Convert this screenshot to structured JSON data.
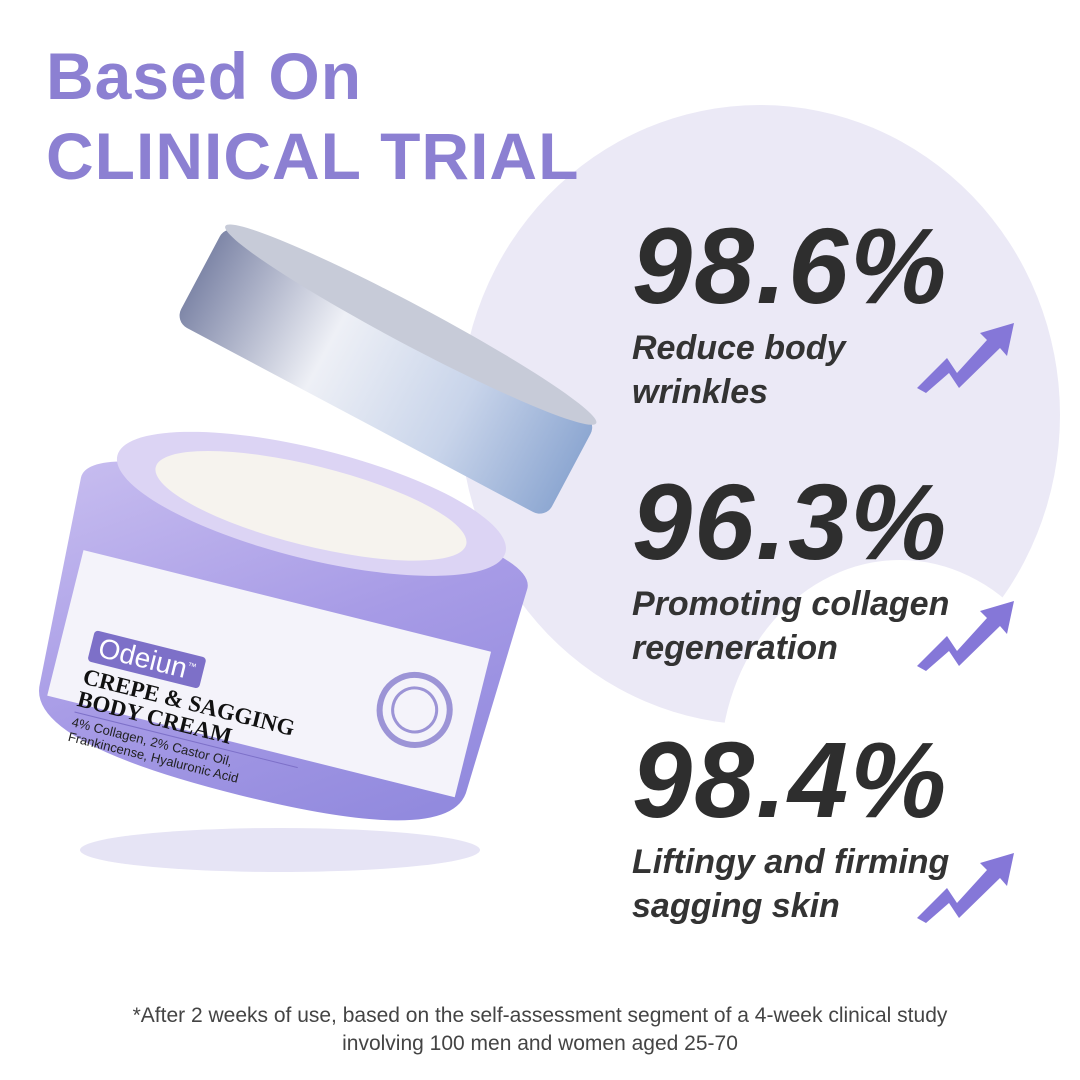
{
  "headline": {
    "line1": "Based On",
    "line2": "CLINICAL TRIAL"
  },
  "stats": [
    {
      "value": "98.6%",
      "label_line1": "Reduce body",
      "label_line2": "wrinkles"
    },
    {
      "value": "96.3%",
      "label_line1": "Promoting collagen",
      "label_line2": "regeneration"
    },
    {
      "value": "98.4%",
      "label_line1": "Liftingy and firming",
      "label_line2": "sagging skin"
    }
  ],
  "product": {
    "brand": "Odeiun",
    "tm": "™",
    "name_line1": "CREPE & SAGGING",
    "name_line2": "BODY CREAM",
    "ingredients_line1": "4% Collagen, 2% Castor Oil,",
    "ingredients_line2": "Frankincense, Hyaluronic Acid"
  },
  "footnote": {
    "line1": "*After 2 weeks of use, based on the self-assessment segment of a 4-week clinical study",
    "line2": "involving 100 men and women aged 25-70"
  },
  "colors": {
    "accent": "#8c80d2",
    "text": "#2e2e2e",
    "bubble": "#ebe9f6"
  }
}
